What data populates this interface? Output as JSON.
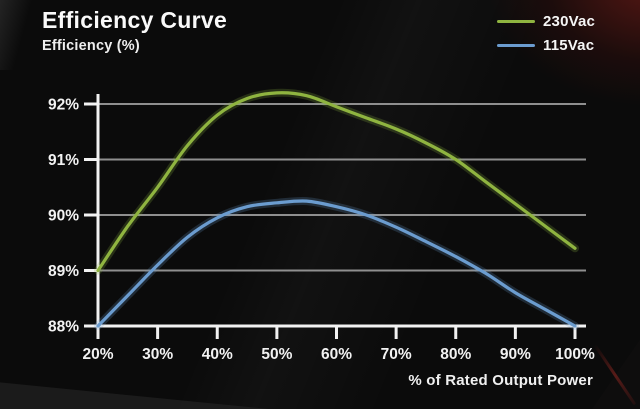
{
  "header": {
    "title": "Efficiency Curve",
    "y_axis_title": "Efficiency (%)",
    "x_axis_title": "% of Rated Output Power"
  },
  "legend": [
    {
      "label": "230Vac",
      "color": "#8fb440"
    },
    {
      "label": "115Vac",
      "color": "#6b9ccf"
    }
  ],
  "colors": {
    "background": "#0b0b0b",
    "axis": "#f2f2f2",
    "gridline": "#8f8f8f",
    "text": "#f2f2f2",
    "series_230vac": "#8fb440",
    "series_115vac": "#6b9ccf",
    "corner_glow_red": "#9e221c"
  },
  "chart_data": {
    "type": "line",
    "title": "Efficiency Curve",
    "xlabel": "% of Rated Output Power",
    "ylabel": "Efficiency (%)",
    "xlim": [
      20,
      100
    ],
    "ylim": [
      88,
      92.3
    ],
    "grid": "horizontal-only",
    "legend_position": "top-right",
    "x_ticks": [
      {
        "value": 20,
        "label": "20%"
      },
      {
        "value": 30,
        "label": "30%"
      },
      {
        "value": 40,
        "label": "40%"
      },
      {
        "value": 50,
        "label": "50%"
      },
      {
        "value": 60,
        "label": "60%"
      },
      {
        "value": 70,
        "label": "70%"
      },
      {
        "value": 80,
        "label": "80%"
      },
      {
        "value": 90,
        "label": "90%"
      },
      {
        "value": 100,
        "label": "100%"
      }
    ],
    "y_ticks": [
      {
        "value": 88,
        "label": "88%"
      },
      {
        "value": 89,
        "label": "89%"
      },
      {
        "value": 90,
        "label": "90%"
      },
      {
        "value": 91,
        "label": "91%"
      },
      {
        "value": 92,
        "label": "92%"
      }
    ],
    "series": [
      {
        "name": "230Vac",
        "color": "#8fb440",
        "x": [
          20,
          25,
          30,
          35,
          40,
          45,
          50,
          55,
          60,
          65,
          70,
          75,
          80,
          85,
          90,
          95,
          100
        ],
        "y": [
          89.0,
          89.8,
          90.5,
          91.25,
          91.8,
          92.1,
          92.2,
          92.15,
          91.95,
          91.75,
          91.55,
          91.3,
          91.0,
          90.6,
          90.2,
          89.8,
          89.4
        ]
      },
      {
        "name": "115Vac",
        "color": "#6b9ccf",
        "x": [
          20,
          25,
          30,
          35,
          40,
          45,
          50,
          55,
          60,
          65,
          70,
          75,
          80,
          85,
          90,
          95,
          100
        ],
        "y": [
          88.0,
          88.55,
          89.1,
          89.6,
          89.95,
          90.15,
          90.22,
          90.25,
          90.15,
          90.0,
          89.78,
          89.52,
          89.25,
          88.95,
          88.6,
          88.3,
          88.0
        ]
      }
    ]
  }
}
